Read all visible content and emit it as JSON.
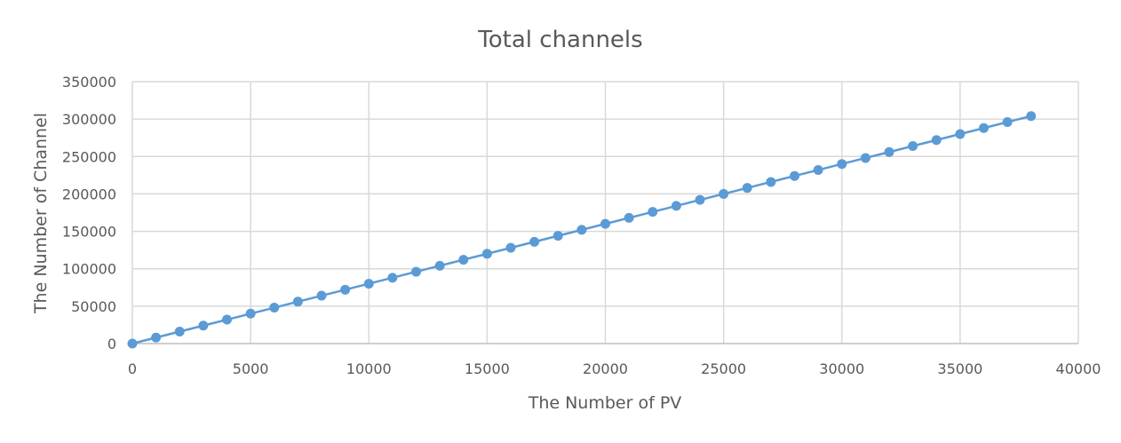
{
  "chart_data": {
    "type": "line",
    "title": "Total channels",
    "xlabel": "The Number of PV",
    "ylabel": "The Number of Channel",
    "xlim": [
      0,
      40000
    ],
    "ylim": [
      0,
      350000
    ],
    "x_ticks": [
      "0",
      "5000",
      "10000",
      "15000",
      "20000",
      "25000",
      "30000",
      "35000",
      "40000"
    ],
    "y_ticks": [
      "0",
      "50000",
      "100000",
      "150000",
      "200000",
      "250000",
      "300000",
      "350000"
    ],
    "grid": true,
    "legend": "none",
    "series": [
      {
        "color": "#5b9bd5",
        "marker": "circle",
        "x": [
          0,
          1000,
          2000,
          3000,
          4000,
          5000,
          6000,
          7000,
          8000,
          9000,
          10000,
          11000,
          12000,
          13000,
          14000,
          15000,
          16000,
          17000,
          18000,
          19000,
          20000,
          21000,
          22000,
          23000,
          24000,
          25000,
          26000,
          27000,
          28000,
          29000,
          30000,
          31000,
          32000,
          33000,
          34000,
          35000,
          36000,
          37000,
          38000
        ],
        "y": [
          0,
          8000,
          16000,
          24000,
          32000,
          40000,
          48000,
          56000,
          64000,
          72000,
          80000,
          88000,
          96000,
          104000,
          112000,
          120000,
          128000,
          136000,
          144000,
          152000,
          160000,
          168000,
          176000,
          184000,
          192000,
          200000,
          208000,
          216000,
          224000,
          232000,
          240000,
          248000,
          256000,
          264000,
          272000,
          280000,
          288000,
          296000,
          304000
        ]
      }
    ]
  }
}
